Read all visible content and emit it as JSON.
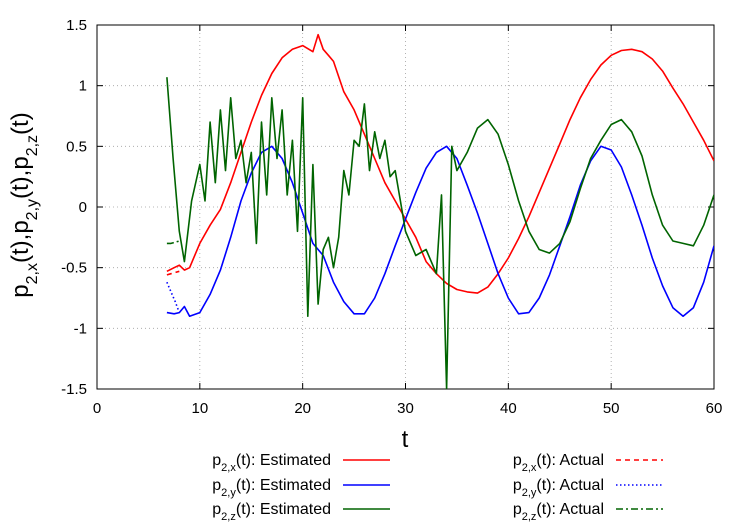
{
  "chart_data": {
    "type": "line",
    "xlabel": "t",
    "ylabel": {
      "parts": [
        [
          "p",
          "2,x",
          "(t),"
        ],
        [
          "p",
          "2,y",
          "(t),"
        ],
        [
          "p",
          "2,z",
          "(t)"
        ]
      ]
    },
    "xlim": [
      0,
      60
    ],
    "ylim": [
      -1.5,
      1.5
    ],
    "xticks": [
      0,
      10,
      20,
      30,
      40,
      50,
      60
    ],
    "yticks": [
      -1.5,
      -1,
      -0.5,
      0,
      0.5,
      1,
      1.5
    ],
    "grid": true,
    "legend_position": "bottom",
    "series": [
      {
        "name": "Estimated",
        "symbol": "p",
        "sub": "2,x",
        "arg": "(t)",
        "color": "#ff0000",
        "dash": "solid",
        "x": [
          6.8,
          7.5,
          8.0,
          8.5,
          9.0,
          10,
          11,
          12,
          13,
          14,
          15,
          16,
          17,
          18,
          19,
          20,
          21,
          21.5,
          22,
          22.5,
          23,
          24,
          25,
          26,
          27,
          28,
          29,
          30,
          31,
          32,
          33,
          34,
          35,
          36,
          37,
          38,
          39,
          40,
          41,
          42,
          43,
          44,
          45,
          46,
          47,
          48,
          49,
          50,
          51,
          52,
          53,
          54,
          55,
          56,
          57,
          58,
          59,
          60
        ],
        "y": [
          -0.53,
          -0.5,
          -0.48,
          -0.52,
          -0.5,
          -0.3,
          -0.15,
          -0.02,
          0.2,
          0.45,
          0.7,
          0.92,
          1.1,
          1.23,
          1.3,
          1.33,
          1.28,
          1.42,
          1.3,
          1.25,
          1.2,
          0.95,
          0.8,
          0.6,
          0.4,
          0.2,
          0.05,
          -0.1,
          -0.25,
          -0.45,
          -0.55,
          -0.63,
          -0.68,
          -0.7,
          -0.71,
          -0.66,
          -0.55,
          -0.42,
          -0.26,
          -0.08,
          0.12,
          0.32,
          0.52,
          0.72,
          0.9,
          1.05,
          1.17,
          1.25,
          1.29,
          1.3,
          1.28,
          1.22,
          1.12,
          0.98,
          0.85,
          0.7,
          0.55,
          0.38
        ]
      },
      {
        "name": "Estimated",
        "symbol": "p",
        "sub": "2,y",
        "arg": "(t)",
        "color": "#0000ff",
        "dash": "solid",
        "x": [
          6.8,
          7.5,
          8.0,
          8.5,
          9,
          10,
          11,
          12,
          13,
          14,
          15,
          16,
          17,
          18,
          19,
          20,
          21,
          22,
          23,
          24,
          25,
          26,
          27,
          28,
          29,
          30,
          31,
          32,
          33,
          34,
          35,
          36,
          37,
          38,
          39,
          40,
          41,
          42,
          43,
          44,
          45,
          46,
          47,
          48,
          49,
          50,
          51,
          52,
          53,
          54,
          55,
          56,
          57,
          58,
          59,
          60
        ],
        "y": [
          -0.87,
          -0.88,
          -0.87,
          -0.82,
          -0.9,
          -0.87,
          -0.72,
          -0.52,
          -0.25,
          0.05,
          0.28,
          0.45,
          0.5,
          0.4,
          0.2,
          -0.05,
          -0.3,
          -0.4,
          -0.62,
          -0.78,
          -0.88,
          -0.88,
          -0.75,
          -0.55,
          -0.32,
          -0.1,
          0.12,
          0.32,
          0.45,
          0.5,
          0.4,
          0.18,
          -0.05,
          -0.3,
          -0.55,
          -0.75,
          -0.88,
          -0.87,
          -0.75,
          -0.56,
          -0.32,
          -0.08,
          0.18,
          0.38,
          0.5,
          0.47,
          0.33,
          0.1,
          -0.15,
          -0.42,
          -0.65,
          -0.83,
          -0.9,
          -0.83,
          -0.62,
          -0.32
        ]
      },
      {
        "name": "Estimated",
        "symbol": "p",
        "sub": "2,z",
        "arg": "(t)",
        "color": "#006400",
        "dash": "solid",
        "x": [
          6.8,
          7.4,
          8.0,
          8.5,
          9.2,
          10.0,
          10.5,
          11.0,
          11.5,
          12.0,
          12.5,
          13.0,
          13.5,
          14.0,
          14.5,
          15.0,
          15.5,
          16.0,
          16.5,
          17.0,
          17.5,
          18.0,
          18.5,
          19.0,
          19.5,
          20.0,
          20.5,
          21.0,
          21.5,
          22.0,
          22.5,
          23.0,
          23.5,
          24.0,
          24.5,
          25.0,
          25.5,
          26.0,
          26.5,
          27.0,
          27.5,
          28.0,
          28.5,
          29.0,
          29.5,
          30.0,
          31.0,
          32.0,
          33.0,
          33.5,
          34.0,
          34.5,
          35.0,
          36.0,
          37.0,
          38.0,
          39.0,
          40.0,
          41.0,
          42.0,
          43.0,
          44.0,
          45.0,
          46.0,
          47.0,
          48.0,
          49.0,
          50.0,
          51.0,
          52.0,
          53.0,
          54.0,
          55.0,
          56.0,
          57.0,
          58.0,
          59.0,
          60.0
        ],
        "y": [
          1.07,
          0.4,
          -0.2,
          -0.45,
          0.05,
          0.35,
          0.05,
          0.7,
          0.2,
          0.8,
          0.3,
          0.9,
          0.4,
          0.55,
          0.2,
          0.45,
          -0.3,
          0.7,
          0.1,
          0.9,
          0.4,
          0.8,
          0.1,
          0.55,
          -0.2,
          0.9,
          -0.9,
          0.35,
          -0.8,
          -0.35,
          -0.25,
          -0.5,
          -0.25,
          0.3,
          0.1,
          0.55,
          0.5,
          0.85,
          0.3,
          0.62,
          0.4,
          0.55,
          0.25,
          0.3,
          0.05,
          -0.2,
          -0.4,
          -0.35,
          -0.55,
          0.1,
          -1.5,
          0.5,
          0.3,
          0.45,
          0.65,
          0.72,
          0.6,
          0.35,
          0.05,
          -0.2,
          -0.35,
          -0.38,
          -0.3,
          -0.12,
          0.15,
          0.4,
          0.55,
          0.68,
          0.72,
          0.62,
          0.42,
          0.1,
          -0.15,
          -0.28,
          -0.3,
          -0.32,
          -0.15,
          0.1
        ]
      },
      {
        "name": "Actual",
        "symbol": "p",
        "sub": "2,x",
        "arg": "(t)",
        "color": "#ff0000",
        "dash": "dashed",
        "x": [
          6.8,
          7.2,
          7.6,
          8.0
        ],
        "y": [
          -0.56,
          -0.55,
          -0.54,
          -0.53
        ]
      },
      {
        "name": "Actual",
        "symbol": "p",
        "sub": "2,y",
        "arg": "(t)",
        "color": "#0000ff",
        "dash": "dotted",
        "x": [
          6.8,
          7.2,
          7.6,
          8.0
        ],
        "y": [
          -0.62,
          -0.7,
          -0.78,
          -0.87
        ]
      },
      {
        "name": "Actual",
        "symbol": "p",
        "sub": "2,z",
        "arg": "(t)",
        "color": "#006400",
        "dash": "dashdot",
        "x": [
          6.8,
          7.2,
          7.6,
          8.0
        ],
        "y": [
          -0.3,
          -0.3,
          -0.29,
          -0.28
        ]
      }
    ],
    "legend_suffix": ": "
  }
}
